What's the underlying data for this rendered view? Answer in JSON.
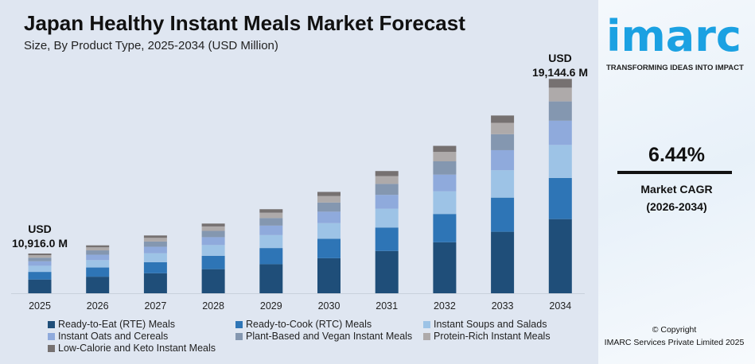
{
  "title": "Japan Healthy Instant Meals Market Forecast",
  "subtitle": "Size, By Product Type, 2025-2034 (USD Million)",
  "annotations": {
    "start_currency": "USD",
    "start_value": "10,916.0 M",
    "end_currency": "USD",
    "end_value": "19,144.6 M"
  },
  "brand": {
    "logo": "imarc",
    "tagline": "TRANSFORMING IDEAS INTO IMPACT",
    "color": "#1ba1e2"
  },
  "cagr": {
    "value": "6.44%",
    "label": "Market CAGR",
    "period": "(2026-2034)"
  },
  "copyright": {
    "line1": "© Copyright",
    "line2": "IMARC Services Private Limited 2025"
  },
  "chart_data": {
    "type": "bar",
    "stacked": true,
    "title": "Japan Healthy Instant Meals Market Forecast",
    "subtitle": "Size, By Product Type, 2025-2034 (USD Million)",
    "categories": [
      "2025",
      "2026",
      "2027",
      "2028",
      "2029",
      "2030",
      "2031",
      "2032",
      "2033",
      "2034"
    ],
    "totals": [
      10916.0,
      11619,
      12368,
      13164,
      14012,
      14915,
      15875,
      16898,
      17986,
      19144.6
    ],
    "series": [
      {
        "name": "Ready-to-Eat (RTE) Meals",
        "share": 0.346,
        "color": "#1f4e79"
      },
      {
        "name": "Ready-to-Cook (RTC) Meals",
        "share": 0.192,
        "color": "#2e75b6"
      },
      {
        "name": "Instant Soups and Salads",
        "share": 0.154,
        "color": "#9dc3e6"
      },
      {
        "name": "Instant Oats and Cereals",
        "share": 0.113,
        "color": "#8faadc"
      },
      {
        "name": "Plant-Based and Vegan Instant Meals",
        "share": 0.09,
        "color": "#8497b0"
      },
      {
        "name": "Protein-Rich Instant Meals",
        "share": 0.064,
        "color": "#aeaaaa"
      },
      {
        "name": "Low-Calorie and Keto Instant Meals",
        "share": 0.041,
        "color": "#767171"
      }
    ],
    "grid": false,
    "legend": "bottom"
  }
}
